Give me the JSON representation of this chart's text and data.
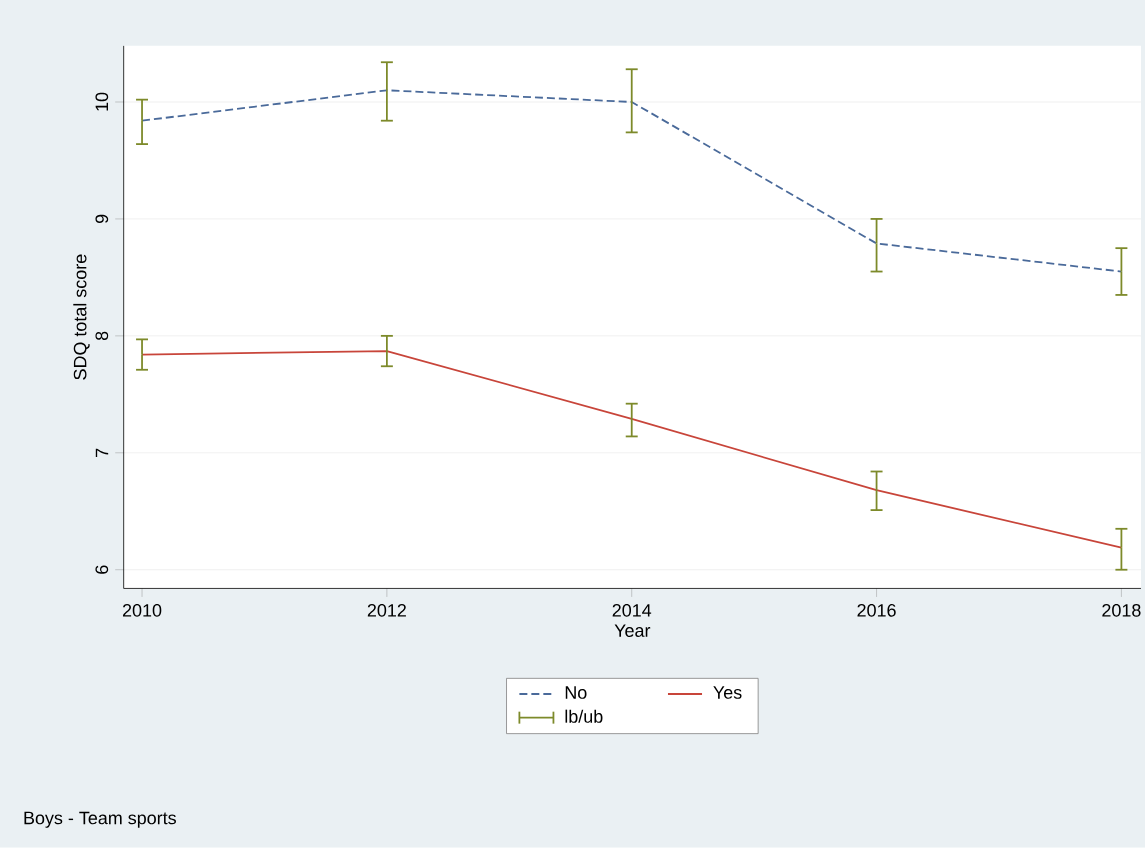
{
  "chart_data": {
    "type": "line",
    "xlabel": "Year",
    "ylabel": "SDQ total score",
    "x": [
      2010,
      2012,
      2014,
      2016,
      2018
    ],
    "xlim": [
      2009.85,
      2018.16
    ],
    "xticks": [
      2010,
      2012,
      2014,
      2016,
      2018
    ],
    "ylim": [
      5.84,
      10.48
    ],
    "yticks": [
      6,
      7,
      8,
      9,
      10
    ],
    "series": [
      {
        "name": "No",
        "color": "#4a6a9a",
        "line_style": "dashed",
        "values": [
          9.84,
          10.1,
          10.0,
          8.79,
          8.55
        ],
        "errors": [
          [
            9.64,
            10.02
          ],
          [
            9.84,
            10.34
          ],
          [
            9.74,
            10.28
          ],
          [
            8.55,
            9.0
          ],
          [
            8.35,
            8.75
          ]
        ]
      },
      {
        "name": "Yes",
        "color": "#c8453a",
        "line_style": "solid",
        "values": [
          7.84,
          7.87,
          7.29,
          6.68,
          6.19
        ],
        "errors": [
          [
            7.71,
            7.97
          ],
          [
            7.74,
            8.0
          ],
          [
            7.14,
            7.42
          ],
          [
            6.51,
            6.84
          ],
          [
            6.0,
            6.35
          ]
        ]
      },
      {
        "name": "lb/ub",
        "color": "#7d8a2a",
        "values": [
          null,
          null,
          null,
          null,
          null
        ]
      }
    ],
    "grid": "y",
    "legend": "bottom",
    "marker": "none",
    "annotations": [
      "Boys - Team sports"
    ]
  }
}
